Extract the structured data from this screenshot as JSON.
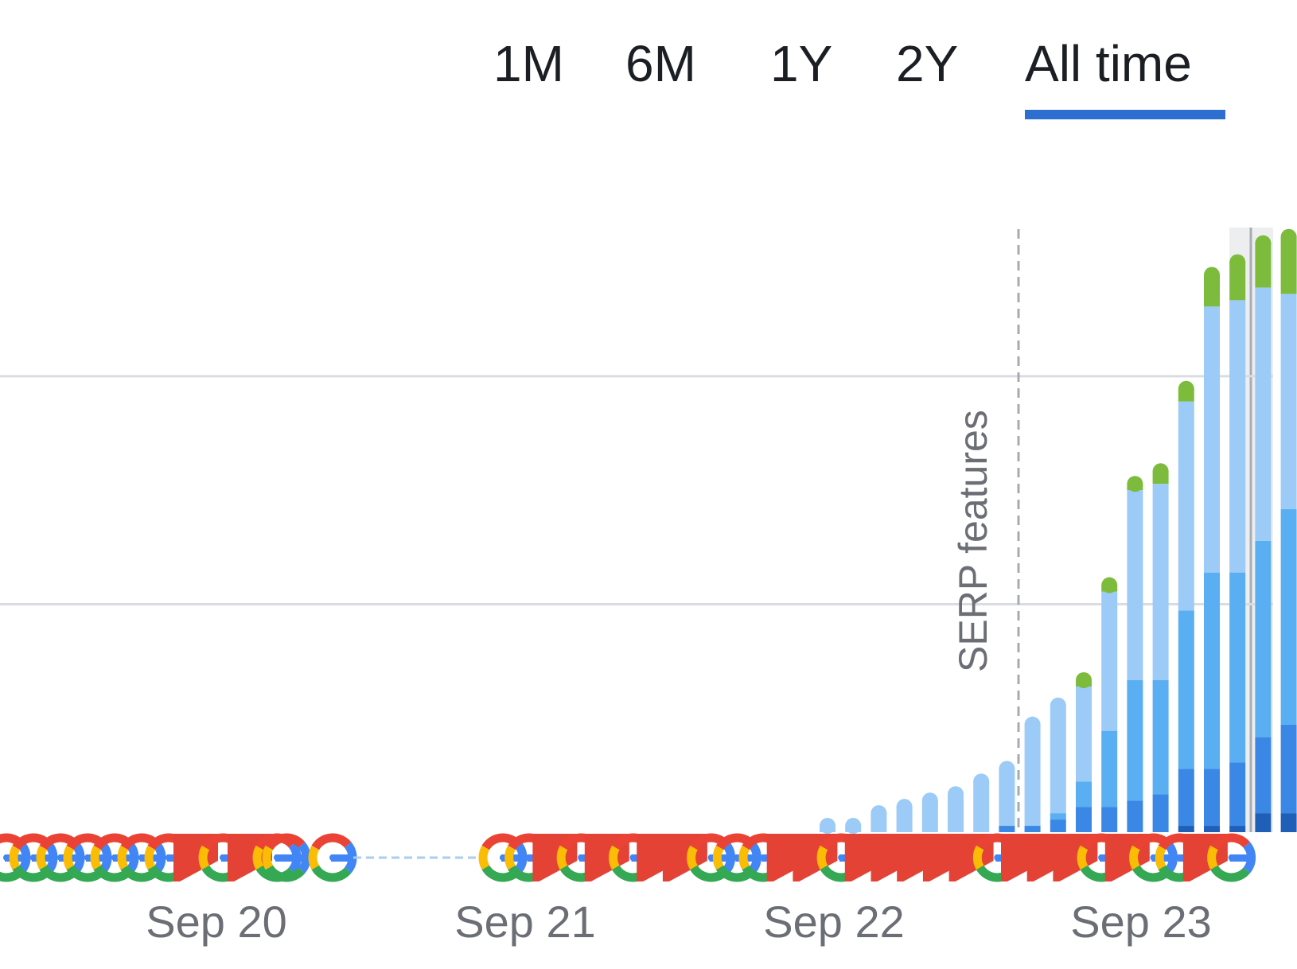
{
  "tabs": {
    "items": [
      {
        "label": "1M",
        "active": false
      },
      {
        "label": "6M",
        "active": false
      },
      {
        "label": "1Y",
        "active": false
      },
      {
        "label": "2Y",
        "active": false
      },
      {
        "label": "All time",
        "active": true
      }
    ],
    "accent": "#2c6fd1"
  },
  "chart_data": {
    "type": "bar",
    "stacked": true,
    "title": "",
    "xlabel": "",
    "ylabel": "",
    "x_ticks": [
      "Sep 20",
      "Sep 21",
      "Sep 22",
      "Sep 23"
    ],
    "ylim": [
      0,
      100
    ],
    "grid": true,
    "annotation": {
      "label": "SERP features",
      "style": "dashed vertical line"
    },
    "categories": [
      "b1",
      "b2",
      "b3",
      "b4",
      "b5",
      "b6",
      "b7",
      "b8",
      "b9",
      "b10",
      "b11",
      "b12",
      "b13",
      "b14",
      "b15",
      "b16",
      "b17",
      "b18",
      "b19",
      "b20"
    ],
    "series": [
      {
        "color": "#1f5fb8",
        "values": [
          0,
          0,
          0,
          0,
          0,
          0,
          0,
          0,
          0,
          0,
          0,
          0,
          0,
          0,
          1,
          1,
          1,
          3,
          3,
          4
        ]
      },
      {
        "color": "#3b87e6",
        "values": [
          0,
          0,
          0,
          0,
          0,
          0,
          0,
          1,
          1,
          2,
          4,
          4,
          5,
          6,
          9,
          9,
          10,
          12,
          14,
          13
        ]
      },
      {
        "color": "#5aaef2",
        "values": [
          0,
          0,
          0,
          0,
          0,
          0,
          0,
          0,
          0,
          1,
          4,
          12,
          19,
          18,
          25,
          31,
          30,
          31,
          34,
          34
        ]
      },
      {
        "color": "#9ccbf7",
        "values": [
          1,
          1,
          3,
          4,
          5,
          6,
          8,
          9,
          16,
          17,
          15,
          22,
          30,
          31,
          33,
          42,
          43,
          40,
          34,
          46
        ]
      },
      {
        "color": "#7dbb3d",
        "values": [
          0,
          0,
          0,
          0,
          0,
          0,
          0,
          0,
          0,
          0,
          1,
          1,
          1,
          2,
          2,
          5,
          6,
          7,
          9,
          8
        ]
      }
    ],
    "icons_row": {
      "type": "serp-rank-markers",
      "icon_names": [
        "google-g-icon",
        "red-flag-icon"
      ]
    },
    "colors": {
      "grid": "#d9dce1",
      "axis_text": "#6b6e75",
      "highlight_band": "#eceef0"
    }
  }
}
